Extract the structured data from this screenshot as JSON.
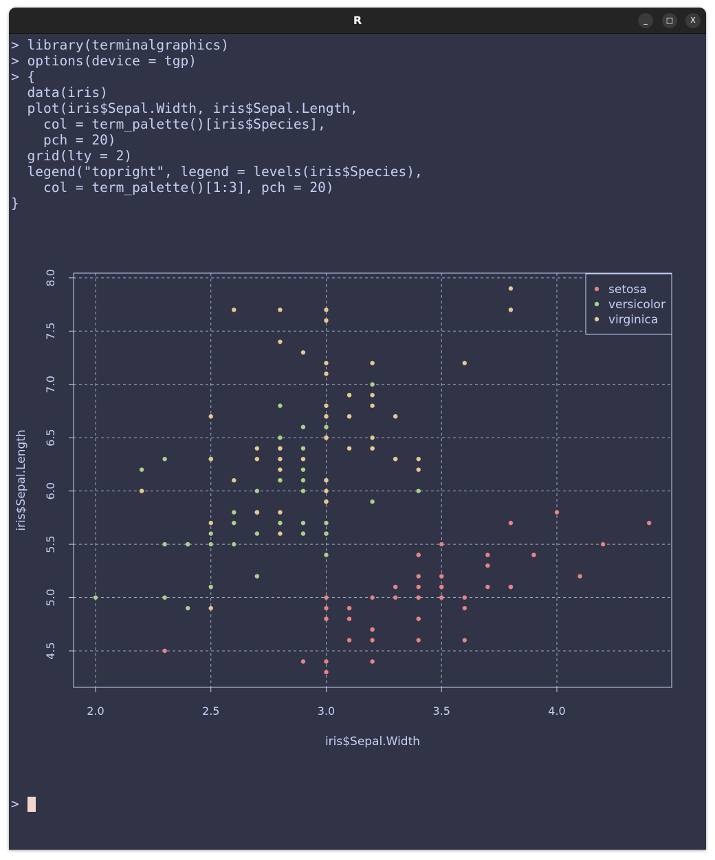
{
  "window": {
    "title": "R",
    "buttons": [
      "_",
      "□",
      "X"
    ]
  },
  "terminal": {
    "lines": [
      "> library(terminalgraphics)",
      "> options(device = tgp)",
      "> {",
      "  data(iris)",
      "  plot(iris$Sepal.Width, iris$Sepal.Length,",
      "    col = term_palette()[iris$Species],",
      "    pch = 20)",
      "  grid(lty = 2)",
      "  legend(\"topright\", legend = levels(iris$Species),",
      "    col = term_palette()[1:3], pch = 20)",
      "}"
    ],
    "prompt": ">"
  },
  "colors": {
    "background": "#303446",
    "foreground": "#c6d0f5",
    "grid": "#c6d0f5",
    "cursor": "#f2d5cf"
  },
  "chart_data": {
    "type": "scatter",
    "xlabel": "iris$Sepal.Width",
    "ylabel": "iris$Sepal.Length",
    "xlim": [
      1.9,
      4.5
    ],
    "ylim": [
      4.16,
      8.04
    ],
    "xticks": [
      "2.0",
      "2.5",
      "3.0",
      "3.5",
      "4.0"
    ],
    "yticks": [
      "4.5",
      "5.0",
      "5.5",
      "6.0",
      "6.5",
      "7.0",
      "7.5",
      "8.0"
    ],
    "grid": true,
    "grid_style": "dashed",
    "legend_position": "top-right",
    "series": [
      {
        "name": "setosa",
        "color": "#e78284",
        "x": [
          3.5,
          3.0,
          3.2,
          3.1,
          3.6,
          3.9,
          3.4,
          3.4,
          2.9,
          3.1,
          3.7,
          3.4,
          3.0,
          3.0,
          4.0,
          4.4,
          3.9,
          3.5,
          3.8,
          3.8,
          3.4,
          3.7,
          3.6,
          3.3,
          3.4,
          3.0,
          3.4,
          3.5,
          3.4,
          3.2,
          3.1,
          3.4,
          4.1,
          4.2,
          3.1,
          3.2,
          3.5,
          3.6,
          3.0,
          3.4,
          3.5,
          2.3,
          3.2,
          3.5,
          3.8,
          3.0,
          3.8,
          3.2,
          3.7,
          3.3
        ],
        "y": [
          5.1,
          4.9,
          4.7,
          4.6,
          5.0,
          5.4,
          4.6,
          5.0,
          4.4,
          4.9,
          5.4,
          4.8,
          4.8,
          4.3,
          5.8,
          5.7,
          5.4,
          5.1,
          5.7,
          5.1,
          5.4,
          5.1,
          4.6,
          5.1,
          4.8,
          5.0,
          5.0,
          5.2,
          5.2,
          4.7,
          4.8,
          5.4,
          5.2,
          5.5,
          4.9,
          5.0,
          5.5,
          4.9,
          4.4,
          5.1,
          5.0,
          4.5,
          4.4,
          5.0,
          5.1,
          4.8,
          5.1,
          4.6,
          5.3,
          5.0
        ]
      },
      {
        "name": "versicolor",
        "color": "#a6d189",
        "x": [
          3.2,
          3.2,
          3.1,
          2.3,
          2.8,
          2.8,
          3.3,
          2.4,
          2.9,
          2.7,
          2.0,
          3.0,
          2.2,
          2.9,
          2.9,
          3.1,
          3.0,
          2.7,
          2.2,
          2.5,
          3.2,
          2.8,
          2.5,
          2.8,
          2.9,
          3.0,
          2.8,
          3.0,
          2.9,
          2.6,
          2.4,
          2.4,
          2.7,
          2.7,
          3.0,
          3.4,
          3.1,
          2.3,
          3.0,
          2.5,
          2.6,
          3.0,
          2.6,
          2.3,
          2.7,
          3.0,
          2.9,
          2.9,
          2.5,
          2.8
        ],
        "y": [
          7.0,
          6.4,
          6.9,
          5.5,
          6.5,
          5.7,
          6.3,
          4.9,
          6.6,
          5.2,
          5.0,
          5.9,
          6.0,
          6.1,
          5.6,
          6.7,
          5.6,
          5.8,
          6.2,
          5.6,
          5.9,
          6.1,
          6.3,
          6.1,
          6.4,
          6.6,
          6.8,
          6.7,
          6.0,
          5.7,
          5.5,
          5.5,
          5.8,
          6.0,
          5.4,
          6.0,
          6.7,
          6.3,
          5.6,
          5.5,
          5.5,
          6.1,
          5.8,
          5.0,
          5.6,
          5.7,
          5.7,
          6.2,
          5.1,
          5.7
        ]
      },
      {
        "name": "virginica",
        "color": "#e5c890",
        "x": [
          3.3,
          2.7,
          3.0,
          2.9,
          3.0,
          3.0,
          2.5,
          2.9,
          2.5,
          3.6,
          3.2,
          2.7,
          3.0,
          2.5,
          2.8,
          3.2,
          3.0,
          3.8,
          2.6,
          2.2,
          3.2,
          2.8,
          2.8,
          2.7,
          3.3,
          3.2,
          2.8,
          3.0,
          2.8,
          3.0,
          2.8,
          3.8,
          2.8,
          2.8,
          2.6,
          3.0,
          3.4,
          3.1,
          3.0,
          3.1,
          3.1,
          3.1,
          2.7,
          3.2,
          3.3,
          3.0,
          2.5,
          3.0,
          3.4,
          3.0
        ],
        "y": [
          6.3,
          5.8,
          7.1,
          6.3,
          6.5,
          7.6,
          4.9,
          7.3,
          6.7,
          7.2,
          6.5,
          6.4,
          6.8,
          5.7,
          5.8,
          6.4,
          6.5,
          7.7,
          7.7,
          6.0,
          6.9,
          5.6,
          7.7,
          6.3,
          6.7,
          7.2,
          6.2,
          6.1,
          6.4,
          7.2,
          7.4,
          7.9,
          6.4,
          6.3,
          6.1,
          7.7,
          6.3,
          6.4,
          6.0,
          6.9,
          6.7,
          6.9,
          5.8,
          6.8,
          6.7,
          6.7,
          6.3,
          6.5,
          6.2,
          5.9
        ]
      }
    ]
  }
}
